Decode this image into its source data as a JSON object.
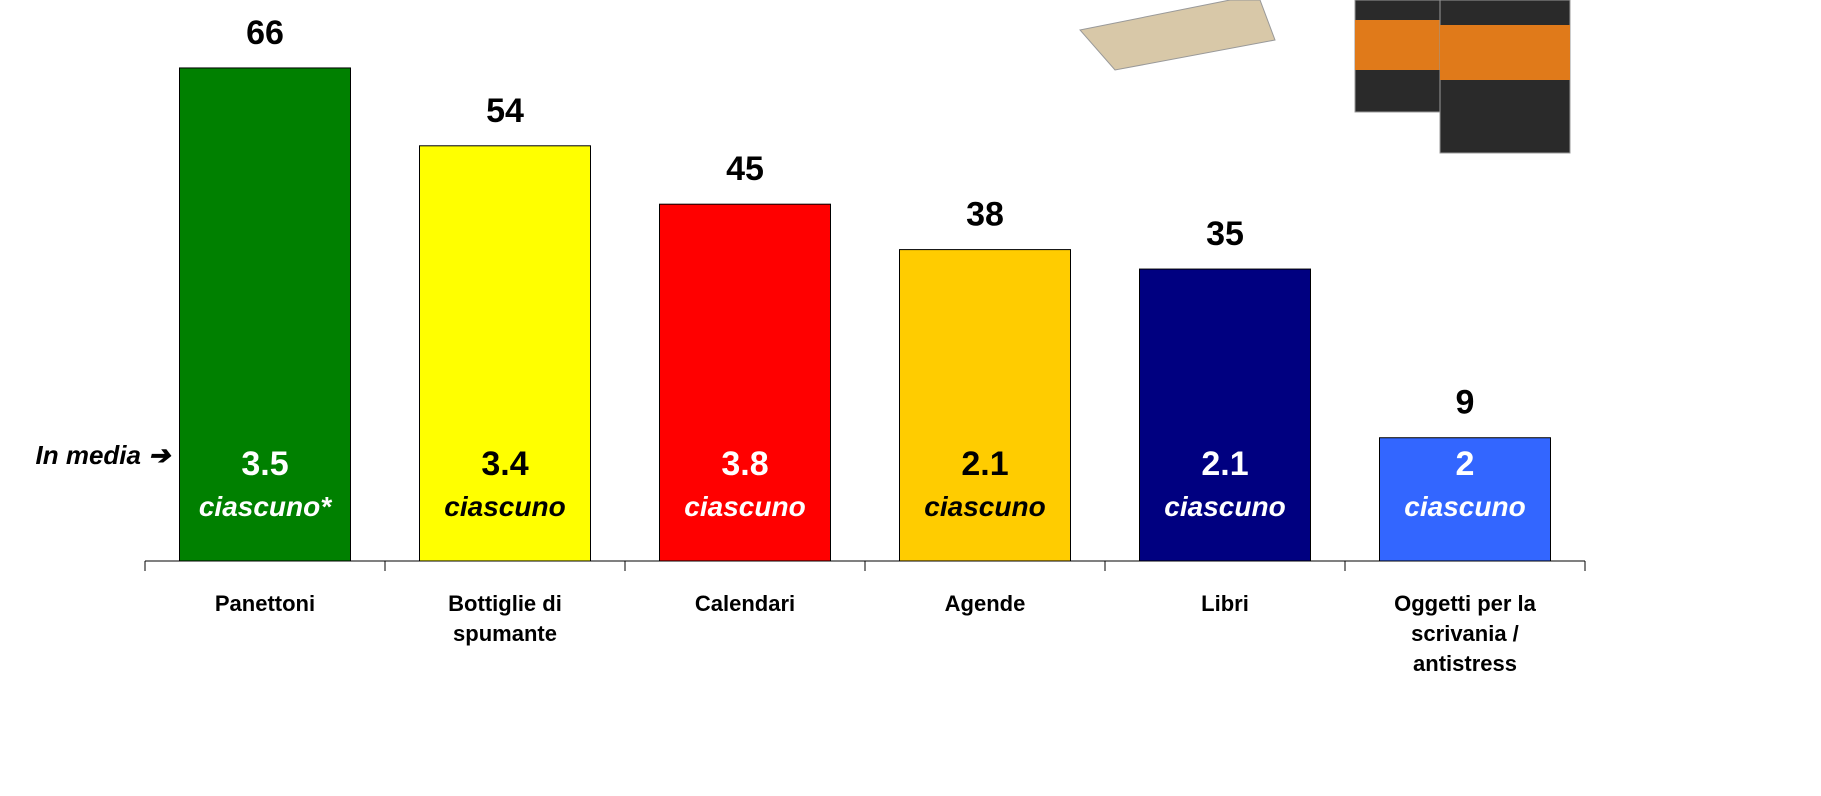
{
  "chart_data": {
    "type": "bar",
    "categories": [
      "Panettoni",
      "Bottiglie di\nspumante",
      "Calendari",
      "Agende",
      "Libri",
      "Oggetti per la\nscrivania /\nantistress"
    ],
    "values": [
      66,
      54,
      45,
      38,
      35,
      9
    ],
    "colors": [
      "#008000",
      "#ffff00",
      "#ff0000",
      "#ffcc00",
      "#000080",
      "#3366ff"
    ],
    "ylim": [
      -10,
      70
    ],
    "annotation": "In media ➔",
    "inner_values": [
      3.5,
      3.4,
      3.8,
      2.1,
      2.1,
      2
    ],
    "inner_labels": [
      "ciascuno*",
      "ciascuno",
      "ciascuno",
      "ciascuno",
      "ciascuno",
      "ciascuno"
    ],
    "inner_text_colors": [
      "#ffffff",
      "#000000",
      "#ffffff",
      "#000000",
      "#ffffff",
      "#ffffff"
    ]
  }
}
